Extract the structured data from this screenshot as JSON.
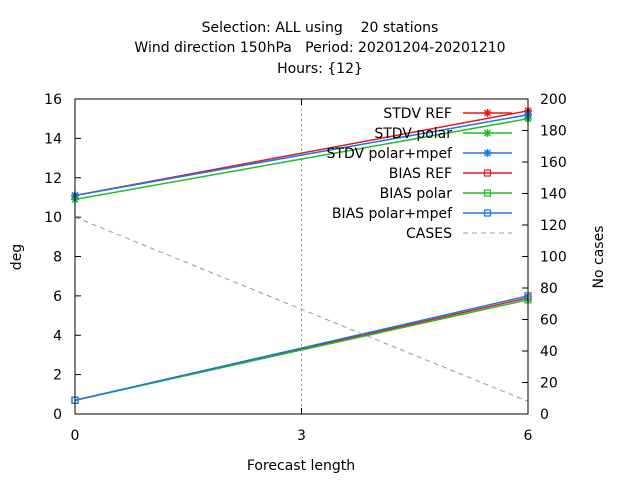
{
  "chart_data": {
    "type": "line",
    "title_lines": [
      "Selection: ALL using    20 stations",
      "Wind direction 150hPa   Period: 20201204-20201210",
      "Hours: {12}"
    ],
    "xlabel": "Forecast length",
    "ylabel": "deg",
    "y2label": "No cases",
    "x": [
      0,
      6
    ],
    "x_ticks": [
      0,
      3,
      6
    ],
    "xlim": [
      0,
      6
    ],
    "ylim": [
      0,
      16
    ],
    "y_ticks": [
      0,
      2,
      4,
      6,
      8,
      10,
      12,
      14,
      16
    ],
    "y2lim": [
      0,
      200
    ],
    "y2_ticks": [
      0,
      20,
      40,
      60,
      80,
      100,
      120,
      140,
      160,
      180,
      200
    ],
    "grid": "vertical dotted at x ticks",
    "legend_position": "top-right",
    "series": [
      {
        "name": "STDV REF",
        "axis": "y",
        "color": "#e41a1c",
        "marker": "star",
        "dash": "solid",
        "values": [
          11.1,
          15.4
        ]
      },
      {
        "name": "STDV polar",
        "axis": "y",
        "color": "#22bb22",
        "marker": "star",
        "dash": "solid",
        "values": [
          10.9,
          15.0
        ]
      },
      {
        "name": "STDV polar+mpef",
        "axis": "y",
        "color": "#1a75e8",
        "marker": "star",
        "dash": "solid",
        "values": [
          11.1,
          15.2
        ]
      },
      {
        "name": "BIAS REF",
        "axis": "y",
        "color": "#e41a1c",
        "marker": "square",
        "dash": "solid",
        "values": [
          0.7,
          5.9
        ]
      },
      {
        "name": "BIAS polar",
        "axis": "y",
        "color": "#22bb22",
        "marker": "square",
        "dash": "solid",
        "values": [
          0.7,
          5.8
        ]
      },
      {
        "name": "BIAS polar+mpef",
        "axis": "y",
        "color": "#1a75e8",
        "marker": "square",
        "dash": "solid",
        "values": [
          0.7,
          6.0
        ]
      },
      {
        "name": "CASES",
        "axis": "y2",
        "color": "#999999",
        "marker": "none",
        "dash": "dashed",
        "values": [
          125,
          8
        ]
      }
    ]
  }
}
